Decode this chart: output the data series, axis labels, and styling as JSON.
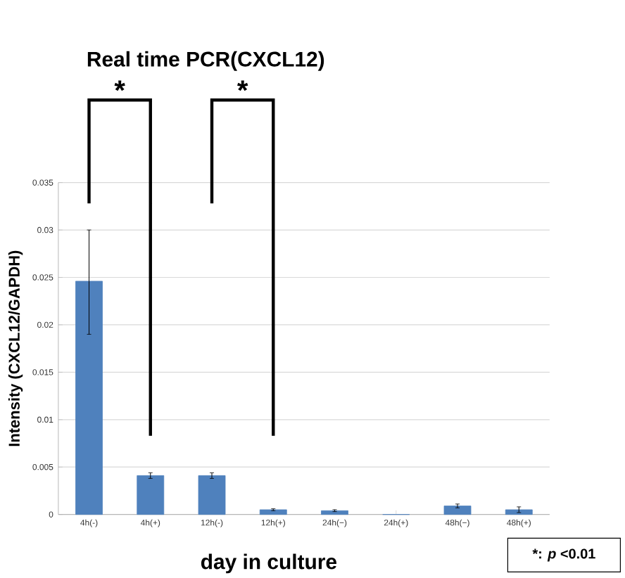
{
  "chart_data": {
    "type": "bar",
    "title": "Real time PCR(CXCL12)",
    "xlabel": "day in culture",
    "ylabel": "Intensity  (CXCL12/GAPDH)",
    "categories": [
      "4h(-)",
      "4h(+)",
      "12h(-)",
      "12h(+)",
      "24h(−)",
      "24h(+)",
      "48h(−)",
      "48h(+)"
    ],
    "values": [
      0.0246,
      0.0041,
      0.0041,
      0.0005,
      0.0004,
      0,
      0.0009,
      0.0005
    ],
    "errors": [
      [
        0.019,
        0.03
      ],
      0.0003,
      0.0003,
      0.0001,
      0.0001,
      null,
      0.0002,
      0.0003
    ],
    "color": "#4f81bd",
    "ylim": [
      0,
      0.035
    ],
    "yticks": [
      0,
      0.005,
      0.01,
      0.015,
      0.02,
      0.025,
      0.03,
      0.035
    ],
    "grid": "y",
    "annotations": [
      "*",
      "*",
      "*: *p* <0.01"
    ]
  }
}
